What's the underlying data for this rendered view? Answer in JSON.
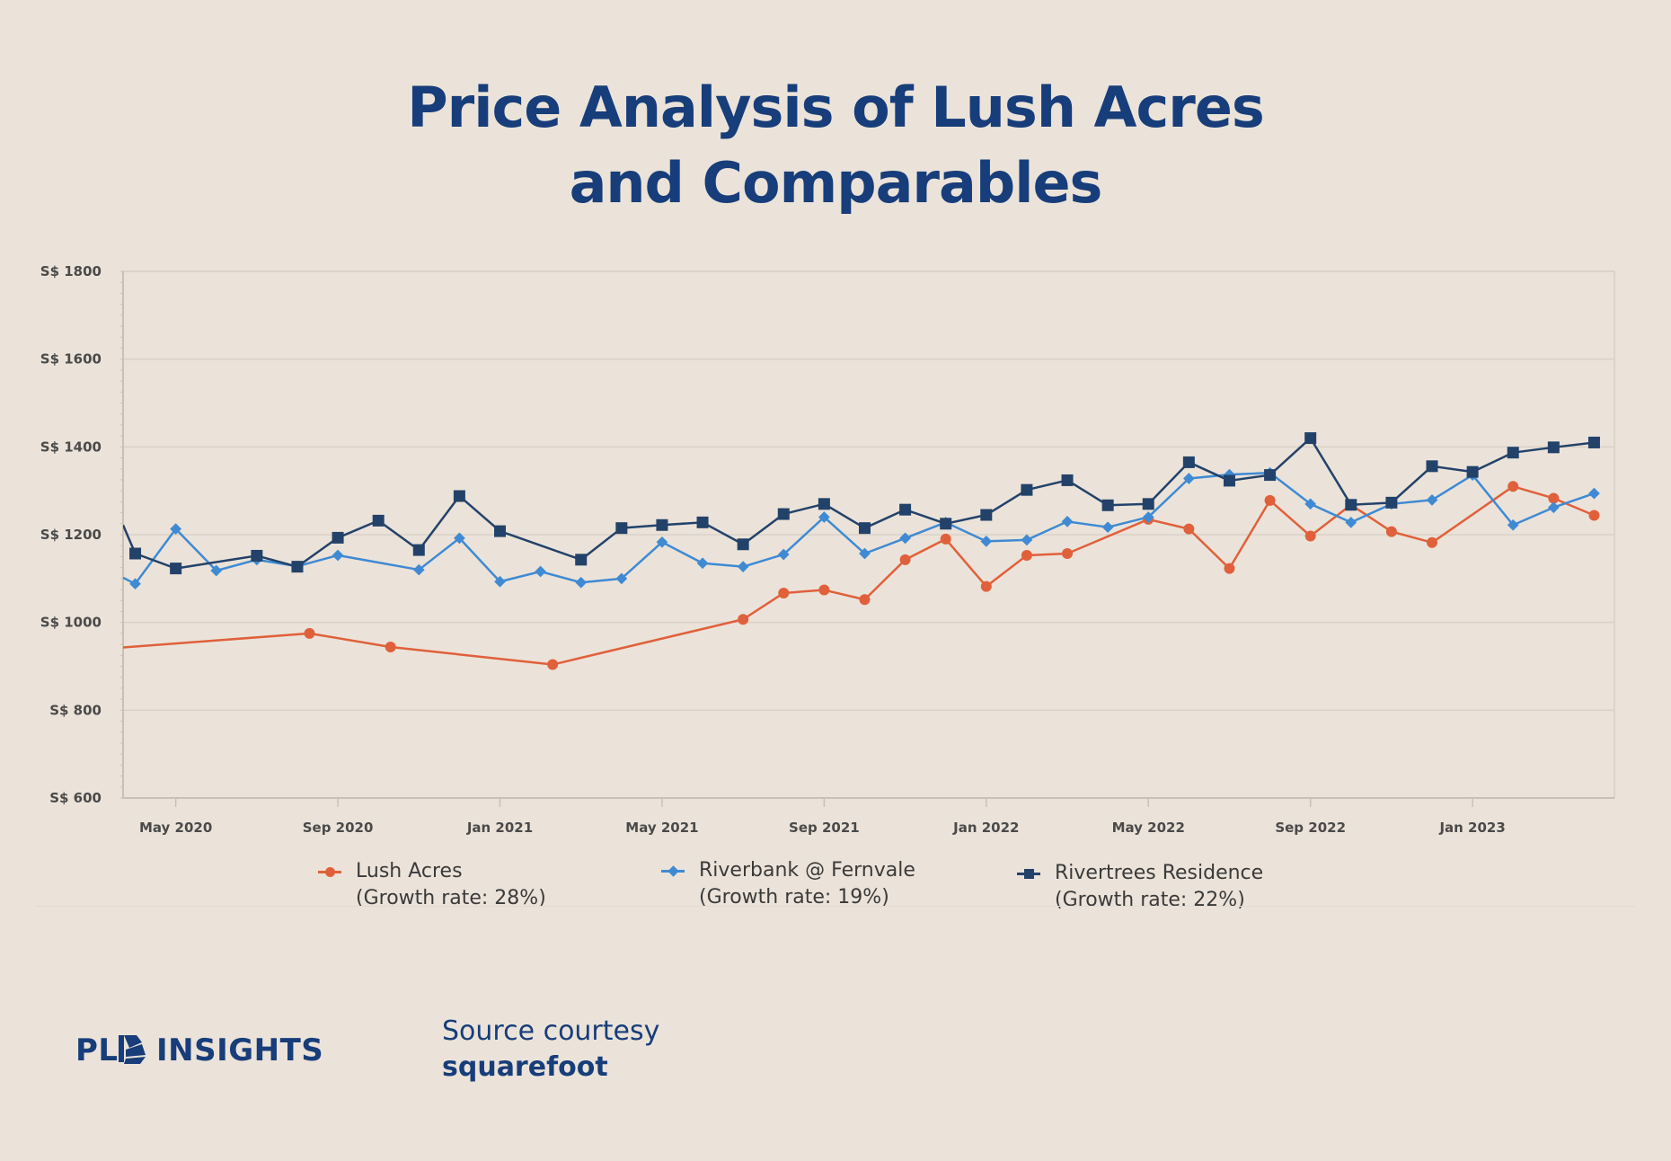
{
  "header": {
    "title_line1": "Price Analysis of Lush Acres",
    "title_line2": "and Comparables"
  },
  "chart_data": {
    "type": "line",
    "title": "Price Analysis of Lush Acres and Comparables",
    "ylim": [
      600,
      1800
    ],
    "yticks": [
      600,
      800,
      1000,
      1200,
      1400,
      1600,
      1800
    ],
    "ytick_labels": [
      "S$ 600",
      "S$ 800",
      "S$ 1000",
      "S$ 1200",
      "S$ 1400",
      "S$ 1600",
      "S$ 1800"
    ],
    "xlim": [
      -1.3,
      35.5
    ],
    "xticks": [
      0,
      4,
      8,
      12,
      16,
      20,
      24,
      28,
      32
    ],
    "xtick_labels": [
      "May 2020",
      "Sep 2020",
      "Jan 2021",
      "May 2021",
      "Sep 2021",
      "Jan 2022",
      "May 2022",
      "Sep 2022",
      "Jan 2023"
    ],
    "grid": true,
    "legend_position": "bottom",
    "series": [
      {
        "name": "Lush Acres",
        "growth_label": "(Growth rate: 28%)",
        "color": "#e0603b",
        "marker": "circle",
        "points": [
          [
            -1.3,
            943
          ],
          [
            3.3,
            975
          ],
          [
            5.3,
            944
          ],
          [
            9.3,
            904
          ],
          [
            14,
            1007
          ],
          [
            15,
            1067
          ],
          [
            16,
            1074
          ],
          [
            17,
            1052
          ],
          [
            18,
            1143
          ],
          [
            19,
            1190
          ],
          [
            20,
            1082
          ],
          [
            21,
            1153
          ],
          [
            22,
            1157
          ],
          [
            24,
            1235
          ],
          [
            25,
            1213
          ],
          [
            26,
            1123
          ],
          [
            27,
            1278
          ],
          [
            28,
            1197
          ],
          [
            29,
            1268
          ],
          [
            30,
            1207
          ],
          [
            31,
            1182
          ],
          [
            33,
            1310
          ],
          [
            34,
            1283
          ],
          [
            35,
            1244
          ]
        ]
      },
      {
        "name": "Riverbank @ Fernvale",
        "growth_label": "(Growth rate: 19%)",
        "color": "#3f8ad3",
        "marker": "diamond",
        "points": [
          [
            -1.3,
            1102
          ],
          [
            -1,
            1088
          ],
          [
            0,
            1213
          ],
          [
            1,
            1118
          ],
          [
            2,
            1143
          ],
          [
            3,
            1128
          ],
          [
            4,
            1153
          ],
          [
            6,
            1120
          ],
          [
            7,
            1192
          ],
          [
            8,
            1093
          ],
          [
            9,
            1116
          ],
          [
            10,
            1091
          ],
          [
            11,
            1100
          ],
          [
            12,
            1183
          ],
          [
            13,
            1135
          ],
          [
            14,
            1127
          ],
          [
            15,
            1155
          ],
          [
            16,
            1240
          ],
          [
            17,
            1157
          ],
          [
            18,
            1192
          ],
          [
            19,
            1228
          ],
          [
            20,
            1185
          ],
          [
            21,
            1188
          ],
          [
            22,
            1230
          ],
          [
            23,
            1217
          ],
          [
            24,
            1240
          ],
          [
            25,
            1328
          ],
          [
            26,
            1337
          ],
          [
            27,
            1341
          ],
          [
            28,
            1270
          ],
          [
            29,
            1228
          ],
          [
            30,
            1270
          ],
          [
            31,
            1279
          ],
          [
            32,
            1336
          ],
          [
            33,
            1222
          ],
          [
            34,
            1262
          ],
          [
            35,
            1294
          ]
        ]
      },
      {
        "name": "Rivertrees Residence",
        "growth_label": "(Growth rate: 22%)",
        "color": "#23426a",
        "marker": "square",
        "points": [
          [
            -1.3,
            1222
          ],
          [
            -1,
            1157
          ],
          [
            0,
            1123
          ],
          [
            2,
            1152
          ],
          [
            3,
            1127
          ],
          [
            4,
            1193
          ],
          [
            5,
            1232
          ],
          [
            6,
            1165
          ],
          [
            7,
            1288
          ],
          [
            8,
            1208
          ],
          [
            10,
            1143
          ],
          [
            11,
            1215
          ],
          [
            12,
            1222
          ],
          [
            13,
            1228
          ],
          [
            14,
            1178
          ],
          [
            15,
            1247
          ],
          [
            16,
            1270
          ],
          [
            17,
            1215
          ],
          [
            18,
            1257
          ],
          [
            19,
            1225
          ],
          [
            20,
            1245
          ],
          [
            21,
            1302
          ],
          [
            22,
            1324
          ],
          [
            23,
            1267
          ],
          [
            24,
            1270
          ],
          [
            25,
            1365
          ],
          [
            26,
            1323
          ],
          [
            27,
            1336
          ],
          [
            28,
            1420
          ],
          [
            29,
            1268
          ],
          [
            30,
            1273
          ],
          [
            31,
            1356
          ],
          [
            32,
            1343
          ],
          [
            33,
            1387
          ],
          [
            34,
            1399
          ],
          [
            35,
            1410
          ]
        ]
      }
    ]
  },
  "legend": [
    {
      "name": "Lush Acres",
      "growth": "(Growth rate: 28%)",
      "color": "#e0603b",
      "marker": "circle"
    },
    {
      "name": "Riverbank @ Fernvale",
      "growth": "(Growth rate: 19%)",
      "color": "#3f8ad3",
      "marker": "diamond"
    },
    {
      "name": "Rivertrees Residence",
      "growth": "(Growth rate: 22%)",
      "color": "#23426a",
      "marker": "square"
    }
  ],
  "footer": {
    "logo_text": "PLB INSIGHTS",
    "source_line1": "Source courtesy",
    "source_line2": "squarefoot"
  }
}
